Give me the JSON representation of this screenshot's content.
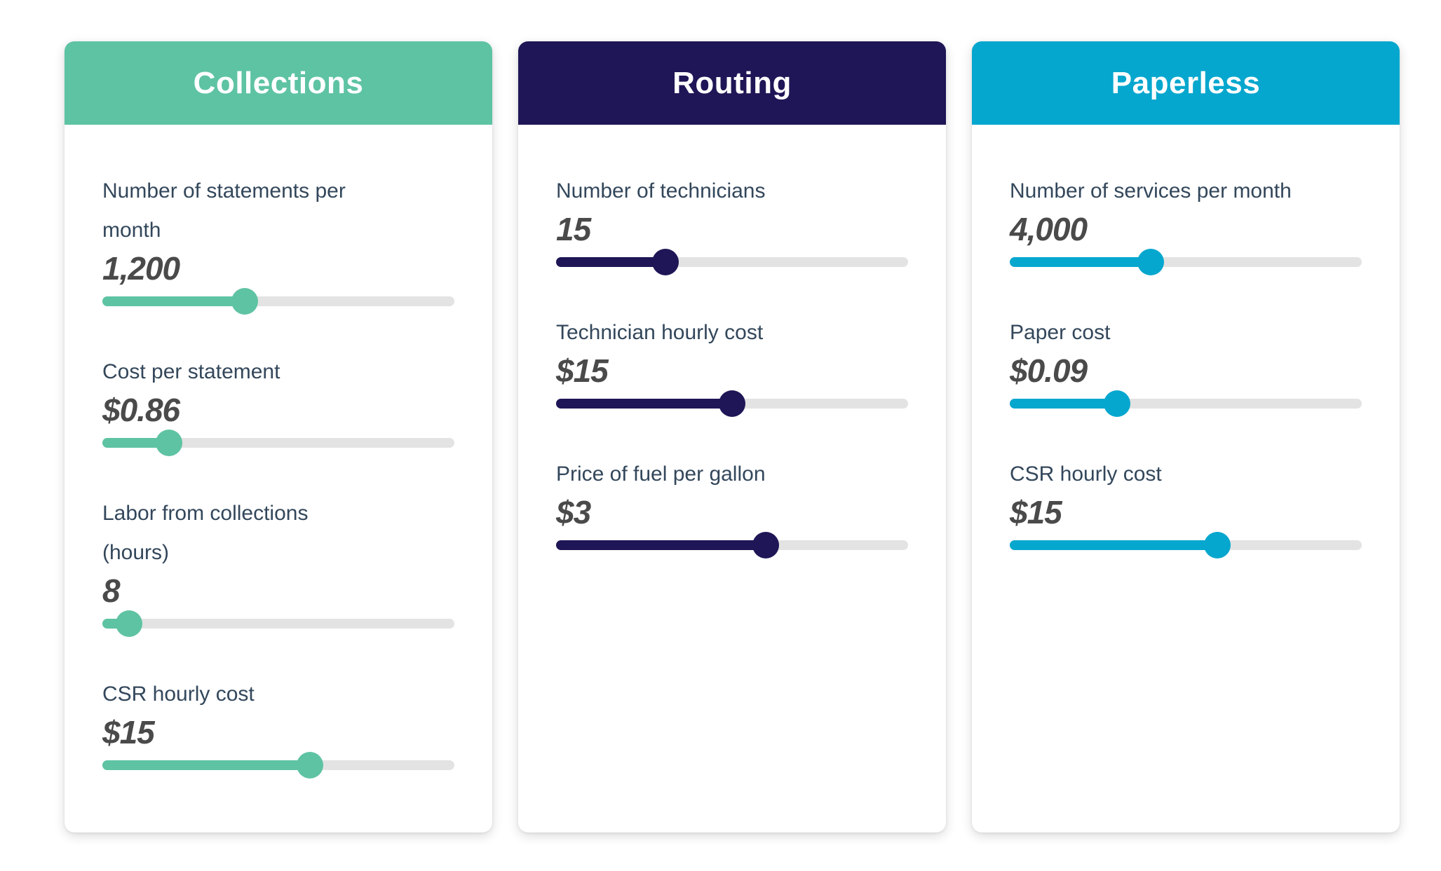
{
  "page": {
    "background": "#ffffff",
    "track_color": "#E3E3E3"
  },
  "cards": [
    {
      "title": "Collections",
      "accent": "#5EC3A3",
      "sliders": [
        {
          "label": "Number of statements per\nmonth",
          "value": "1,200",
          "percent": 40.5
        },
        {
          "label": "Cost per statement",
          "value": "$0.86",
          "percent": 19
        },
        {
          "label": "Labor from collections\n(hours)",
          "value": "8",
          "percent": 7.5
        },
        {
          "label": "CSR hourly cost",
          "value": "$15",
          "percent": 59
        }
      ]
    },
    {
      "title": "Routing",
      "accent": "#1E1656",
      "sliders": [
        {
          "label": "Number of technicians",
          "value": "15",
          "percent": 31
        },
        {
          "label": "Technician hourly cost",
          "value": "$15",
          "percent": 50
        },
        {
          "label": "Price of fuel per gallon",
          "value": "$3",
          "percent": 59.5
        }
      ]
    },
    {
      "title": "Paperless",
      "accent": "#06A7CE",
      "sliders": [
        {
          "label": "Number of services per month",
          "value": "4,000",
          "percent": 40
        },
        {
          "label": "Paper cost",
          "value": "$0.09",
          "percent": 30.5
        },
        {
          "label": "CSR hourly cost",
          "value": "$15",
          "percent": 59
        }
      ]
    }
  ]
}
